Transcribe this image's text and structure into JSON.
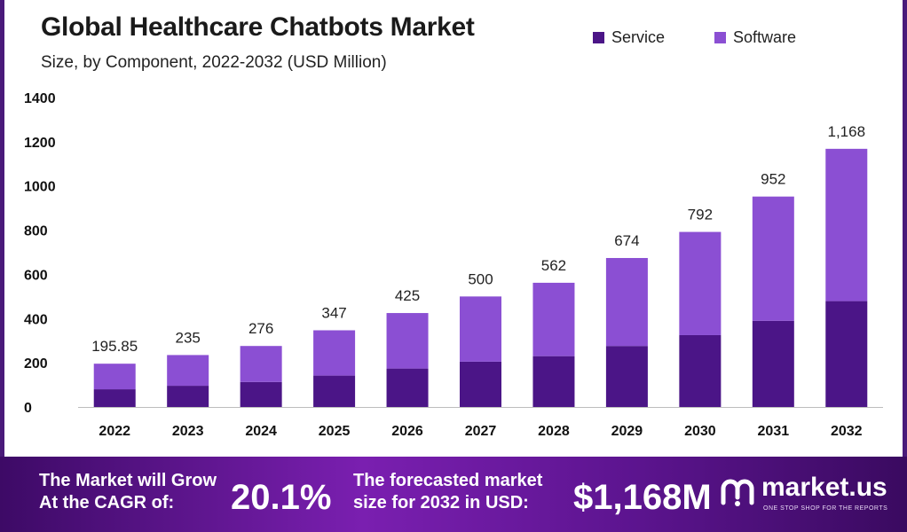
{
  "header": {
    "title": "Global Healthcare Chatbots Market",
    "subtitle": "Size, by Component, 2022-2032 (USD Million)"
  },
  "legend": [
    {
      "name": "Service",
      "color": "#4b1587"
    },
    {
      "name": "Software",
      "color": "#8b4fd3"
    }
  ],
  "chart_data": {
    "type": "bar",
    "stacked": true,
    "categories": [
      "2022",
      "2023",
      "2024",
      "2025",
      "2026",
      "2027",
      "2028",
      "2029",
      "2030",
      "2031",
      "2032"
    ],
    "series": [
      {
        "name": "Service",
        "color": "#4b1587",
        "values": [
          80,
          96,
          113,
          142,
          174,
          205,
          230,
          276,
          325,
          390,
          479
        ]
      },
      {
        "name": "Software",
        "color": "#8b4fd3",
        "values": [
          115.85,
          139,
          163,
          205,
          251,
          295,
          332,
          398,
          467,
          562,
          689
        ]
      }
    ],
    "totals_labels": [
      "195.85",
      "235",
      "276",
      "347",
      "425",
      "500",
      "562",
      "674",
      "792",
      "952",
      "1,168"
    ],
    "y_ticks": [
      0,
      200,
      400,
      600,
      800,
      1000,
      1200,
      1400
    ],
    "ylim": [
      0,
      1400
    ],
    "xlabel": "",
    "ylabel": "",
    "legend_position": "top-right",
    "grid": false
  },
  "banner": {
    "cagr_text_line1": "The Market will Grow",
    "cagr_text_line2": "At the CAGR of:",
    "cagr_value": "20.1%",
    "forecast_text_line1": "The forecasted market",
    "forecast_text_line2": "size for 2032 in USD:",
    "forecast_value": "$1,168M",
    "brand_name": "market.us",
    "brand_tagline": "ONE STOP SHOP FOR THE REPORTS",
    "logo_icon": "market-us-logo-icon"
  }
}
